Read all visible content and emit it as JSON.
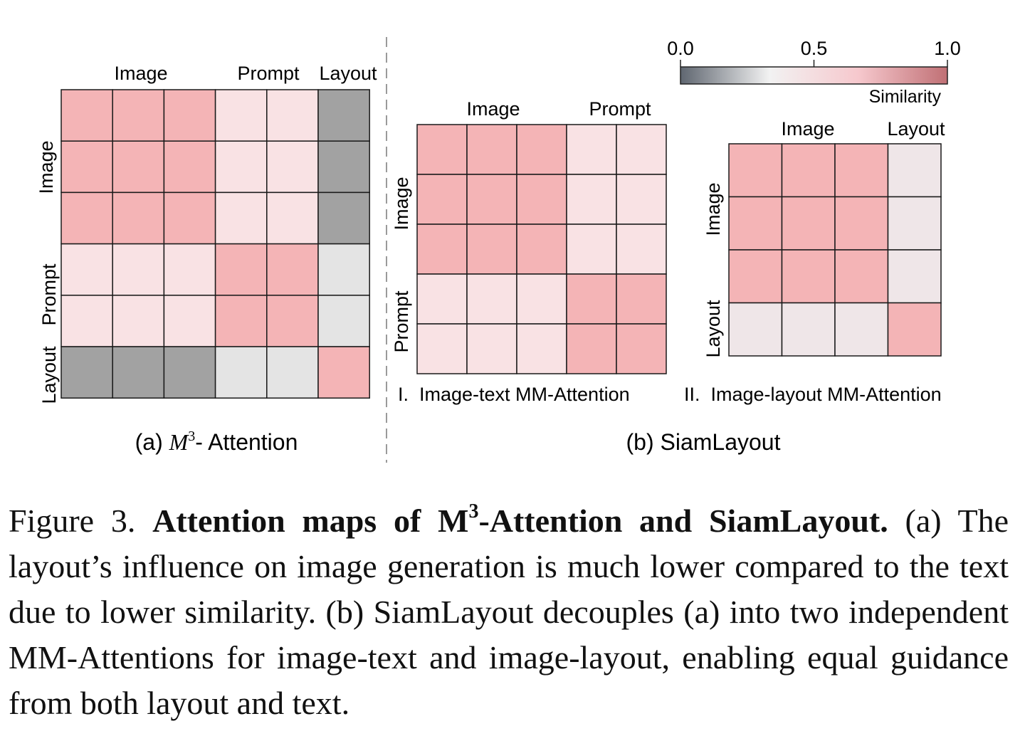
{
  "panel_a": {
    "col_groups": [
      "Image",
      "Prompt",
      "Layout"
    ],
    "row_groups": [
      "Image",
      "Prompt",
      "Layout"
    ],
    "subcaption_prefix": "(a) ",
    "subcaption_M": "M",
    "subcaption_sup": "3",
    "subcaption_suffix": "- Attention"
  },
  "panel_b": {
    "subcaption": "(b) SiamLayout",
    "sub1": {
      "col_groups": [
        "Image",
        "Prompt"
      ],
      "row_groups": [
        "Image",
        "Prompt"
      ],
      "caption": "I.  Image-text MM-Attention"
    },
    "sub2": {
      "col_groups": [
        "Image",
        "Layout"
      ],
      "row_groups": [
        "Image",
        "Layout"
      ],
      "caption": "II.  Image-layout MM-Attention"
    }
  },
  "colorbar": {
    "ticks": [
      "0.0",
      "0.5",
      "1.0"
    ],
    "tick_values": [
      0.0,
      0.5,
      1.0
    ],
    "label": "Similarity",
    "stops": [
      "#5f6670",
      "#f2f2f2",
      "#f6c8cd",
      "#c07075"
    ]
  },
  "chart_data": [
    {
      "type": "heatmap",
      "title": "(a) M3- Attention",
      "x_groups": [
        "Image",
        "Image",
        "Image",
        "Prompt",
        "Prompt",
        "Layout"
      ],
      "y_groups": [
        "Image",
        "Image",
        "Image",
        "Prompt",
        "Prompt",
        "Layout"
      ],
      "cell_colors": [
        [
          "#f4b4b6",
          "#f4b4b6",
          "#f4b4b6",
          "#f9e2e4",
          "#f9e2e4",
          "#a2a2a2"
        ],
        [
          "#f4b4b6",
          "#f4b4b6",
          "#f4b4b6",
          "#f9e2e4",
          "#f9e2e4",
          "#a2a2a2"
        ],
        [
          "#f4b4b6",
          "#f4b4b6",
          "#f4b4b6",
          "#f9e2e4",
          "#f9e2e4",
          "#a2a2a2"
        ],
        [
          "#f9e2e4",
          "#f9e2e4",
          "#f9e2e4",
          "#f4b4b6",
          "#f4b4b6",
          "#e4e4e4"
        ],
        [
          "#f9e2e4",
          "#f9e2e4",
          "#f9e2e4",
          "#f4b4b6",
          "#f4b4b6",
          "#e4e4e4"
        ],
        [
          "#a2a2a2",
          "#a2a2a2",
          "#a2a2a2",
          "#e4e4e4",
          "#e4e4e4",
          "#f4b4b6"
        ]
      ]
    },
    {
      "type": "heatmap",
      "title": "I. Image-text MM-Attention",
      "x_groups": [
        "Image",
        "Image",
        "Image",
        "Prompt",
        "Prompt"
      ],
      "y_groups": [
        "Image",
        "Image",
        "Image",
        "Prompt",
        "Prompt"
      ],
      "cell_colors": [
        [
          "#f4b4b6",
          "#f4b4b6",
          "#f4b4b6",
          "#f9e2e4",
          "#f9e2e4"
        ],
        [
          "#f4b4b6",
          "#f4b4b6",
          "#f4b4b6",
          "#f9e2e4",
          "#f9e2e4"
        ],
        [
          "#f4b4b6",
          "#f4b4b6",
          "#f4b4b6",
          "#f9e2e4",
          "#f9e2e4"
        ],
        [
          "#f9e2e4",
          "#f9e2e4",
          "#f9e2e4",
          "#f4b4b6",
          "#f4b4b6"
        ],
        [
          "#f9e2e4",
          "#f9e2e4",
          "#f9e2e4",
          "#f4b4b6",
          "#f4b4b6"
        ]
      ]
    },
    {
      "type": "heatmap",
      "title": "II. Image-layout MM-Attention",
      "x_groups": [
        "Image",
        "Image",
        "Image",
        "Layout"
      ],
      "y_groups": [
        "Image",
        "Image",
        "Image",
        "Layout"
      ],
      "cell_colors": [
        [
          "#f4b4b6",
          "#f4b4b6",
          "#f4b4b6",
          "#efe6e8"
        ],
        [
          "#f4b4b6",
          "#f4b4b6",
          "#f4b4b6",
          "#efe6e8"
        ],
        [
          "#f4b4b6",
          "#f4b4b6",
          "#f4b4b6",
          "#efe6e8"
        ],
        [
          "#efe6e8",
          "#efe6e8",
          "#efe6e8",
          "#f4b4b6"
        ]
      ]
    }
  ],
  "caption": {
    "fig_label": "Figure 3. ",
    "bold_1": "Attention maps of M",
    "bold_sup": "3",
    "bold_2": "-Attention and SiamLayout.",
    "body": " (a) The layout’s influence on image generation is much lower compared to the text due to lower similarity. (b) SiamLayout decouples (a) into two independent MM-Attentions for image-text and image-layout, enabling equal guidance from both layout and text."
  }
}
